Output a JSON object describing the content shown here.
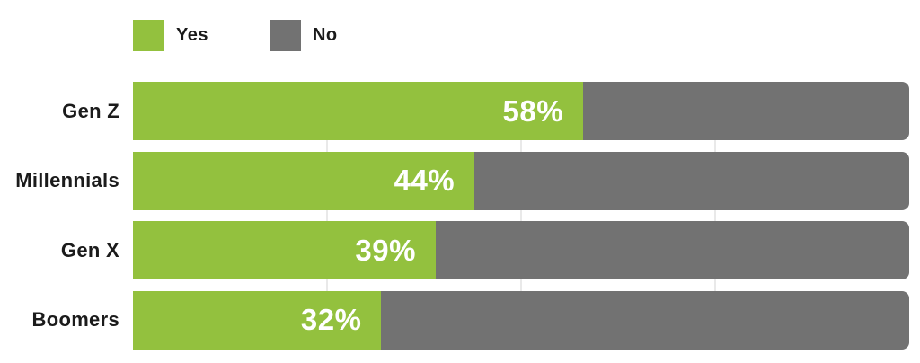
{
  "chart_data": {
    "type": "bar",
    "orientation": "horizontal",
    "stacked": true,
    "title": "",
    "xlabel": "",
    "ylabel": "",
    "xlim": [
      0,
      100
    ],
    "categories": [
      "Gen Z",
      "Millennials",
      "Gen X",
      "Boomers"
    ],
    "series": [
      {
        "name": "Yes",
        "color": "#93C13E",
        "values": [
          58,
          44,
          39,
          32
        ]
      },
      {
        "name": "No",
        "color": "#727272",
        "values": [
          42,
          56,
          61,
          68
        ]
      }
    ],
    "value_labels": [
      "58%",
      "44%",
      "39%",
      "32%"
    ],
    "gridlines_percent": [
      25,
      50,
      75
    ],
    "grid_color": "#e9e9e9",
    "legend_position": "top-left"
  },
  "legend": {
    "items": [
      {
        "label": "Yes",
        "color": "#93C13E"
      },
      {
        "label": "No",
        "color": "#727272"
      }
    ]
  },
  "colors": {
    "yes_green": "#93C13E",
    "no_gray": "#727272",
    "label_text": "#1b1b1b",
    "value_text": "#ffffff",
    "background": "#ffffff",
    "gridline": "#e9e9e9"
  }
}
